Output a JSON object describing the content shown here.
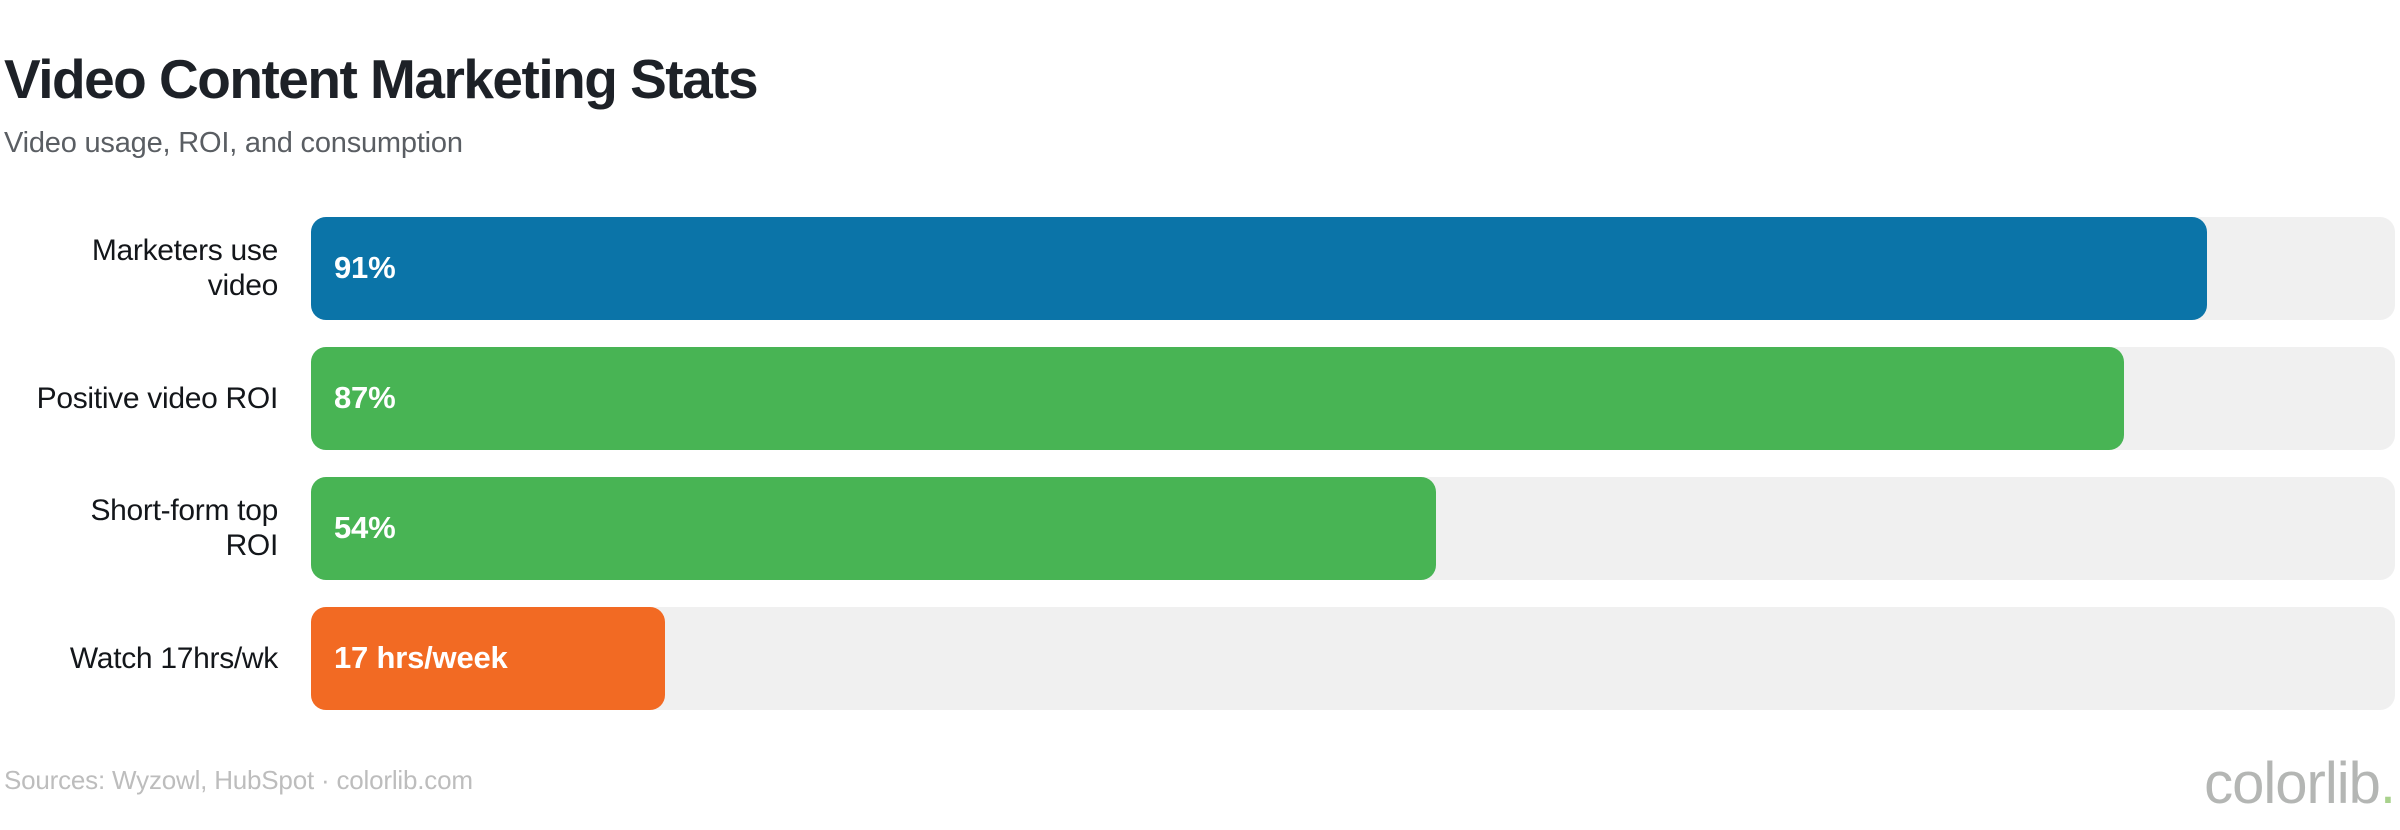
{
  "header": {
    "title": "Video Content Marketing Stats",
    "subtitle": "Video usage, ROI, and consumption"
  },
  "rows": [
    {
      "label": "Marketers use video",
      "label_lines": [
        "Marketers use",
        "video"
      ],
      "value": 91,
      "value_label": "91%",
      "color": "#0b74a8"
    },
    {
      "label": "Positive video ROI",
      "label_lines": [
        "Positive video ROI"
      ],
      "value": 87,
      "value_label": "87%",
      "color": "#48b454"
    },
    {
      "label": "Short-form top ROI",
      "label_lines": [
        "Short-form top",
        "ROI"
      ],
      "value": 54,
      "value_label": "54%",
      "color": "#48b454"
    },
    {
      "label": "Watch 17hrs/wk",
      "label_lines": [
        "Watch 17hrs/wk"
      ],
      "value": 17,
      "value_label": "17 hrs/week",
      "color": "#f26a23"
    }
  ],
  "chart_data": {
    "type": "bar",
    "orientation": "horizontal",
    "title": "Video Content Marketing Stats",
    "subtitle": "Video usage, ROI, and consumption",
    "categories": [
      "Marketers use video",
      "Positive video ROI",
      "Short-form top ROI",
      "Watch 17hrs/wk"
    ],
    "values": [
      91,
      87,
      54,
      17
    ],
    "value_labels": [
      "91%",
      "87%",
      "54%",
      "17 hrs/week"
    ],
    "bar_colors": [
      "#0b74a8",
      "#48b454",
      "#48b454",
      "#f26a23"
    ],
    "track_color": "#f0f0f0",
    "xlim": [
      0,
      100
    ],
    "grid": false,
    "legend": "none"
  },
  "footer": {
    "sources": "Sources: Wyzowl, HubSpot · colorlib.com",
    "brand": "colorlib",
    "brand_dot": ".",
    "brand_dot_color": "#a8d18c"
  }
}
